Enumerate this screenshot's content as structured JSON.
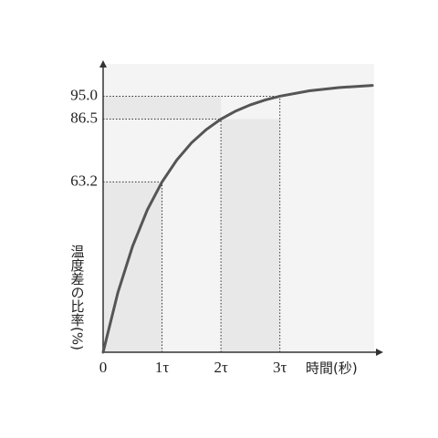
{
  "chart_data": {
    "type": "line",
    "x_label": "時間(秒)",
    "y_label": "温度差の比率(%)",
    "x": [
      0,
      0.25,
      0.5,
      0.75,
      1,
      1.25,
      1.5,
      1.75,
      2,
      2.25,
      2.5,
      2.75,
      3,
      3.5,
      4,
      4.57
    ],
    "series": [
      {
        "color": "#555555",
        "values": [
          0,
          22.1,
          39.3,
          52.8,
          63.2,
          71.3,
          77.7,
          82.6,
          86.5,
          89.5,
          91.8,
          93.6,
          95.0,
          97.0,
          98.2,
          99.0
        ]
      }
    ],
    "xlim": [
      0,
      4.6
    ],
    "ylim": [
      0,
      107
    ],
    "xticks": [
      0,
      {
        "value": 1,
        "label": "1τ"
      },
      {
        "value": 2,
        "label": "2τ"
      },
      {
        "value": 3,
        "label": "3τ"
      }
    ],
    "yticks": [
      63.2,
      86.5,
      {
        "value": 95,
        "label": "95.0"
      }
    ]
  }
}
